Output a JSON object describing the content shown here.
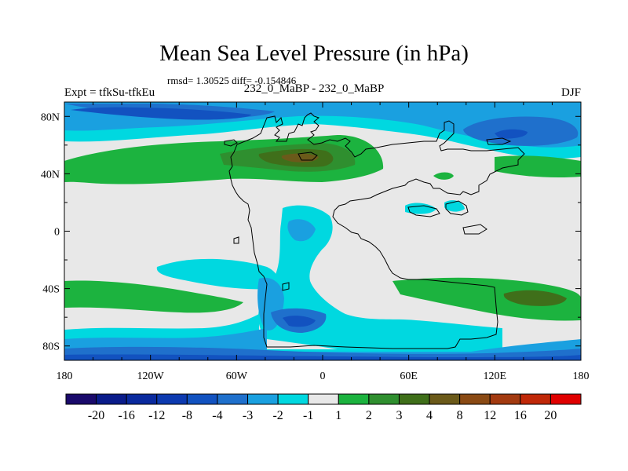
{
  "title": "Mean Sea Level Pressure (in hPa)",
  "stats": "rmsd= 1.30525 diff= -0.154846",
  "left_label": "Expt = tfkSu-tfkEu",
  "center_label": "232_0_MaBP - 232_0_MaBP",
  "right_label": "DJF",
  "y_ticks": [
    {
      "label": "80N",
      "lat": 80
    },
    {
      "label": "40N",
      "lat": 40
    },
    {
      "label": "0",
      "lat": 0
    },
    {
      "label": "40S",
      "lat": -40
    },
    {
      "label": "80S",
      "lat": -80
    }
  ],
  "x_ticks": [
    {
      "label": "180",
      "lon": -180
    },
    {
      "label": "120W",
      "lon": -120
    },
    {
      "label": "60W",
      "lon": -60
    },
    {
      "label": "0",
      "lon": 0
    },
    {
      "label": "60E",
      "lon": 60
    },
    {
      "label": "120E",
      "lon": 120
    },
    {
      "label": "180",
      "lon": 180
    }
  ],
  "lat_range": [
    -90,
    90
  ],
  "lon_range": [
    -180,
    180
  ],
  "colorbar": {
    "colors": [
      "#1a0a6b",
      "#0a1c8a",
      "#0a2a9e",
      "#0d3ab0",
      "#1252c0",
      "#1f70cc",
      "#1aa0e0",
      "#00d8e0",
      "#e8e8e8",
      "#1cb33f",
      "#2f8f2f",
      "#3f6f1a",
      "#6b5a1a",
      "#8a4a14",
      "#a33a10",
      "#c02808",
      "#e00000"
    ],
    "labels": [
      "-20",
      "-16",
      "-12",
      "-8",
      "-4",
      "-3",
      "-2",
      "-1",
      "1",
      "2",
      "3",
      "4",
      "8",
      "12",
      "16",
      "20"
    ]
  },
  "palette": {
    "background": "#e8e8e8",
    "neg_1": "#00d8e0",
    "neg_2": "#1aa0e0",
    "neg_3": "#1f70cc",
    "neg_4": "#1252c0",
    "pos_1": "#1cb33f",
    "pos_2": "#2f8f2f",
    "pos_3": "#3f6f1a",
    "pos_4": "#6b5a1a"
  }
}
